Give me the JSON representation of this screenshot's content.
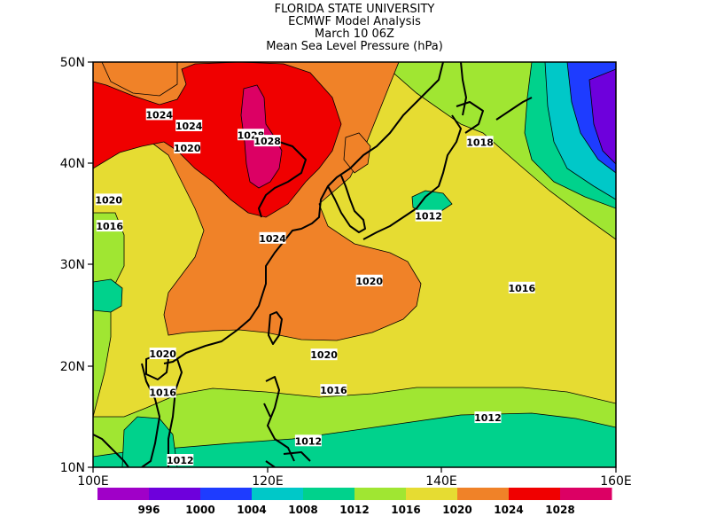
{
  "titles": [
    "FLORIDA STATE UNIVERSITY",
    "ECMWF Model Analysis",
    "March 10 06Z",
    "Mean Sea Level Pressure (hPa)"
  ],
  "map": {
    "lon_range": [
      100,
      160
    ],
    "lat_range": [
      10,
      50
    ],
    "lon_ticks": [
      "100E",
      "120E",
      "140E",
      "160E"
    ],
    "lat_ticks": [
      "50N",
      "40N",
      "30N",
      "20N",
      "10N"
    ]
  },
  "colors": {
    "lt996": "#a000c8",
    "996-1000": "#6e00dc",
    "1000-1004": "#1e3cff",
    "1004-1008": "#00c8c8",
    "1008-1012": "#00d28c",
    "1012-1016": "#a0e632",
    "1016-1020": "#e6dc32",
    "1020-1024": "#f08228",
    "1024-1028": "#f00000",
    "gt1028": "#dc0064"
  },
  "colorbar": {
    "levels": [
      "996",
      "1000",
      "1004",
      "1008",
      "1012",
      "1016",
      "1020",
      "1024",
      "1028"
    ],
    "colors": [
      "#a000c8",
      "#6e00dc",
      "#1e3cff",
      "#00c8c8",
      "#00d28c",
      "#a0e632",
      "#e6dc32",
      "#f08228",
      "#f00000",
      "#dc0064"
    ]
  },
  "contour_labels": [
    {
      "text": "1024",
      "lon": 107.6,
      "lat": 44.8
    },
    {
      "text": "1024",
      "lon": 111.0,
      "lat": 43.7
    },
    {
      "text": "1028",
      "lon": 118.1,
      "lat": 42.8
    },
    {
      "text": "1028",
      "lon": 120.0,
      "lat": 42.2
    },
    {
      "text": "1020",
      "lon": 110.8,
      "lat": 41.5
    },
    {
      "text": "1020",
      "lon": 101.8,
      "lat": 36.4
    },
    {
      "text": "1016",
      "lon": 101.9,
      "lat": 33.8
    },
    {
      "text": "1024",
      "lon": 120.6,
      "lat": 32.6
    },
    {
      "text": "1018",
      "lon": 144.4,
      "lat": 42.1
    },
    {
      "text": "1012",
      "lon": 138.5,
      "lat": 34.8
    },
    {
      "text": "1020",
      "lon": 131.7,
      "lat": 28.4
    },
    {
      "text": "1016",
      "lon": 149.2,
      "lat": 27.7
    },
    {
      "text": "1020",
      "lon": 108.0,
      "lat": 21.2
    },
    {
      "text": "1020",
      "lon": 126.5,
      "lat": 21.1
    },
    {
      "text": "1016",
      "lon": 127.6,
      "lat": 17.6
    },
    {
      "text": "1016",
      "lon": 108.0,
      "lat": 17.4
    },
    {
      "text": "1012",
      "lon": 145.3,
      "lat": 14.9
    },
    {
      "text": "1012",
      "lon": 124.7,
      "lat": 12.6
    },
    {
      "text": "1012",
      "lon": 110.0,
      "lat": 10.7
    }
  ]
}
